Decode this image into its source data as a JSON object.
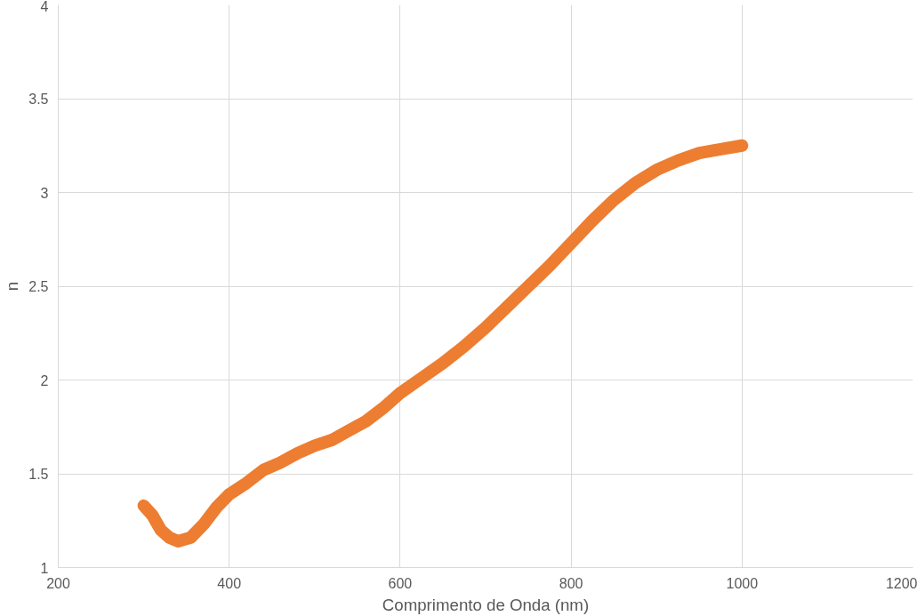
{
  "chart_data": {
    "type": "line",
    "xlabel": "Comprimento de Onda (nm)",
    "ylabel": "n",
    "x": [
      300,
      310,
      320,
      330,
      340,
      355,
      370,
      385,
      400,
      420,
      440,
      460,
      480,
      500,
      520,
      540,
      560,
      580,
      600,
      625,
      650,
      675,
      700,
      725,
      750,
      775,
      800,
      825,
      850,
      875,
      900,
      925,
      950,
      975,
      1000
    ],
    "series": [
      {
        "color": "#ed7d31",
        "values": [
          1.33,
          1.28,
          1.2,
          1.16,
          1.14,
          1.16,
          1.23,
          1.32,
          1.39,
          1.45,
          1.52,
          1.56,
          1.61,
          1.65,
          1.68,
          1.73,
          1.78,
          1.85,
          1.93,
          2.01,
          2.09,
          2.18,
          2.28,
          2.39,
          2.5,
          2.61,
          2.73,
          2.85,
          2.96,
          3.05,
          3.12,
          3.17,
          3.21,
          3.23,
          3.25
        ]
      }
    ],
    "xlim": [
      200,
      1200
    ],
    "ylim": [
      1,
      4
    ],
    "xticks": [
      200,
      400,
      600,
      800,
      1000,
      1200
    ],
    "yticks": [
      1,
      1.5,
      2,
      2.5,
      3,
      3.5,
      4
    ],
    "grid": true,
    "line_style": "solid"
  }
}
